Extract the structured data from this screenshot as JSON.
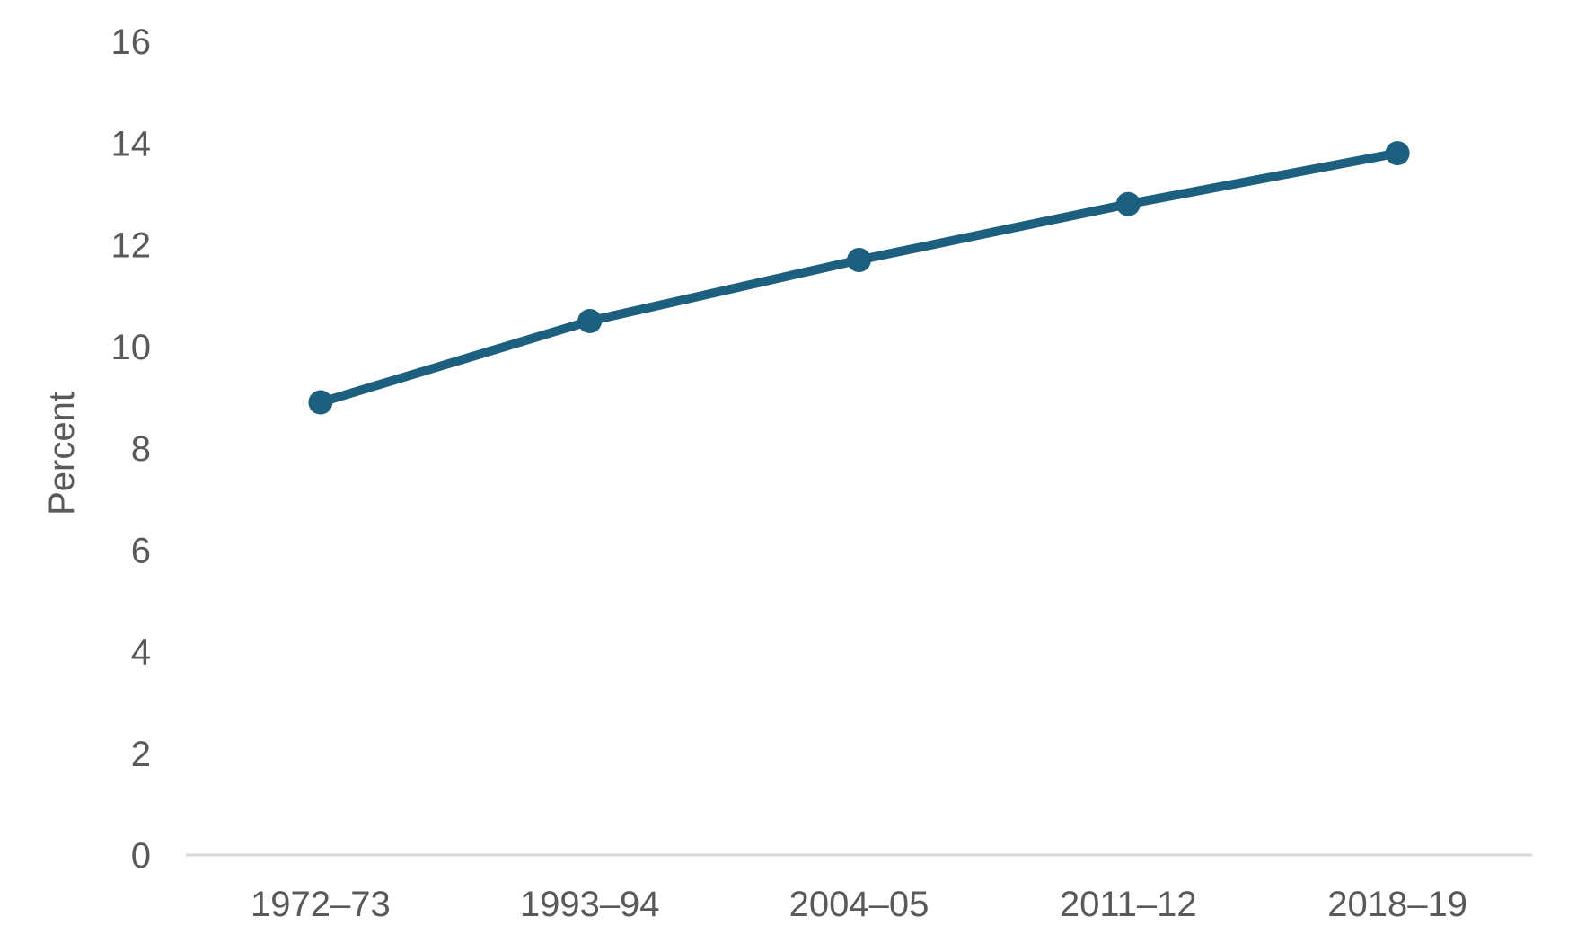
{
  "chart_data": {
    "type": "line",
    "categories": [
      "1972–73",
      "1993–94",
      "2004–05",
      "2011–12",
      "2018–19"
    ],
    "series": [
      {
        "name": "Percent",
        "values": [
          8.9,
          10.5,
          11.7,
          12.8,
          13.8
        ]
      }
    ],
    "title": "",
    "xlabel": "",
    "ylabel": "Percent",
    "ylim": [
      0,
      16
    ],
    "y_ticks": [
      0,
      2,
      4,
      6,
      8,
      10,
      12,
      14,
      16
    ],
    "grid": false,
    "legend": "none",
    "marker": "circle",
    "colors": {
      "line": "#1C5F7F",
      "marker": "#1C5F7F",
      "tick_text": "#595959",
      "axis_title_text": "#595959",
      "axis_line": "#D9D9D9",
      "background": "#FFFFFF"
    }
  }
}
